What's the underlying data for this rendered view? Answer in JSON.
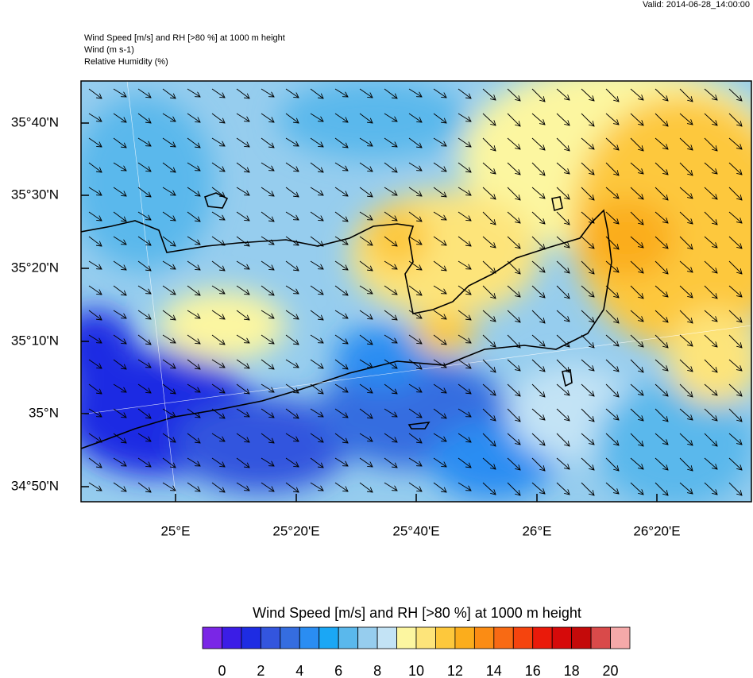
{
  "header": {
    "valid": "Valid: 2014-06-28_14:00:00",
    "title": "Wind Speed [m/s] and RH [>80 %] at 1000 m height",
    "line2": "Wind   (m s-1)",
    "line3": "Relative Humidity   (%)"
  },
  "map": {
    "lat_labels": [
      "35°40'N",
      "35°30'N",
      "35°20'N",
      "35°10'N",
      "35°N",
      "34°50'N"
    ],
    "lon_labels": [
      "25°E",
      "25°20'E",
      "25°40'E",
      "26°E",
      "26°20'E"
    ]
  },
  "colorbar": {
    "title": "Wind Speed [m/s] and RH [>80 %] at 1000 m height",
    "labels": [
      0,
      2,
      4,
      6,
      8,
      10,
      12,
      14,
      16,
      18,
      20
    ],
    "colors": [
      "#7a26e6",
      "#3b1de6",
      "#1e2ce3",
      "#3355de",
      "#356de0",
      "#2a8df2",
      "#1aa7f5",
      "#5ab8ec",
      "#96cdee",
      "#c3e3f5",
      "#fcf6a0",
      "#fde47a",
      "#fdc83c",
      "#fbad1c",
      "#fb8c14",
      "#f86a14",
      "#f5440e",
      "#ea1a0a",
      "#d60a0a",
      "#c40a0a",
      "#d94a4a",
      "#f5a9a9"
    ]
  }
}
